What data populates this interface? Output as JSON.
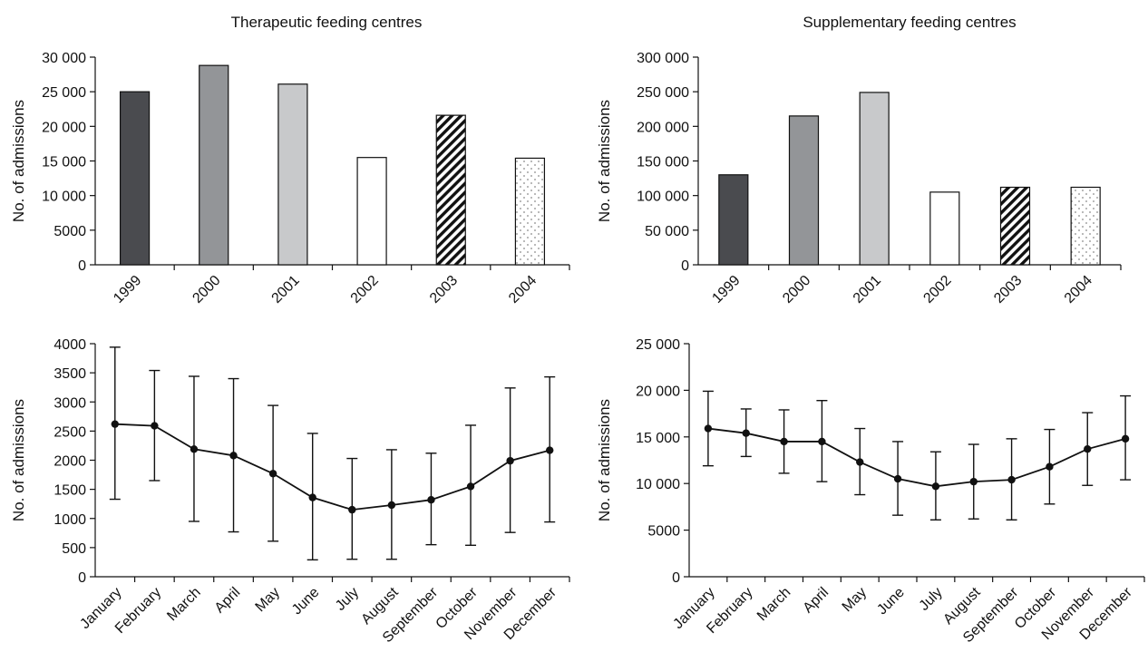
{
  "chart_data": [
    {
      "type": "bar",
      "title": "Therapeutic feeding centres",
      "ylabel": "No. of admissions",
      "categories": [
        "1999",
        "2000",
        "2001",
        "2002",
        "2003",
        "2004"
      ],
      "values": [
        25000,
        28800,
        26100,
        15500,
        21600,
        15400
      ],
      "ylim": [
        0,
        30000
      ],
      "yticks": [
        0,
        5000,
        10000,
        15000,
        20000,
        25000,
        30000
      ],
      "ytick_labels": [
        "0",
        "5000",
        "10 000",
        "15 000",
        "20 000",
        "25 000",
        "30 000"
      ],
      "bar_styles": [
        {
          "fill": "#4a4b4f",
          "pattern": "solid"
        },
        {
          "fill": "#939598",
          "pattern": "solid"
        },
        {
          "fill": "#c8c9cb",
          "pattern": "solid"
        },
        {
          "fill": "#ffffff",
          "pattern": "solid"
        },
        {
          "fill": "#ffffff",
          "pattern": "diagonal-stripes"
        },
        {
          "fill": "#ffffff",
          "pattern": "dots"
        }
      ]
    },
    {
      "type": "bar",
      "title": "Supplementary feeding centres",
      "ylabel": "No. of admissions",
      "categories": [
        "1999",
        "2000",
        "2001",
        "2002",
        "2003",
        "2004"
      ],
      "values": [
        130000,
        215000,
        249000,
        105000,
        112000,
        112000
      ],
      "ylim": [
        0,
        300000
      ],
      "yticks": [
        0,
        50000,
        100000,
        150000,
        200000,
        250000,
        300000
      ],
      "ytick_labels": [
        "0",
        "50 000",
        "100 000",
        "150 000",
        "200 000",
        "250 000",
        "300 000"
      ],
      "bar_styles": [
        {
          "fill": "#4a4b4f",
          "pattern": "solid"
        },
        {
          "fill": "#939598",
          "pattern": "solid"
        },
        {
          "fill": "#c8c9cb",
          "pattern": "solid"
        },
        {
          "fill": "#ffffff",
          "pattern": "solid"
        },
        {
          "fill": "#ffffff",
          "pattern": "diagonal-stripes"
        },
        {
          "fill": "#ffffff",
          "pattern": "dots"
        }
      ]
    },
    {
      "type": "line",
      "title": "",
      "ylabel": "No. of admissions",
      "categories": [
        "January",
        "February",
        "March",
        "April",
        "May",
        "June",
        "July",
        "August",
        "September",
        "October",
        "November",
        "December"
      ],
      "values": [
        2620,
        2590,
        2190,
        2080,
        1770,
        1360,
        1150,
        1230,
        1320,
        1550,
        1990,
        2170
      ],
      "error_low": [
        1330,
        1650,
        950,
        770,
        610,
        290,
        300,
        300,
        550,
        540,
        760,
        940
      ],
      "error_high": [
        3940,
        3540,
        3440,
        3400,
        2940,
        2460,
        2030,
        2180,
        2120,
        2600,
        3240,
        3430
      ],
      "ylim": [
        0,
        4000
      ],
      "yticks": [
        0,
        500,
        1000,
        1500,
        2000,
        2500,
        3000,
        3500,
        4000
      ],
      "ytick_labels": [
        "0",
        "500",
        "1000",
        "1500",
        "2000",
        "2500",
        "3000",
        "3500",
        "4000"
      ]
    },
    {
      "type": "line",
      "title": "",
      "ylabel": "No. of admissions",
      "categories": [
        "January",
        "February",
        "March",
        "April",
        "May",
        "June",
        "July",
        "August",
        "September",
        "October",
        "November",
        "December"
      ],
      "values": [
        15900,
        15400,
        14500,
        14500,
        12300,
        10500,
        9700,
        10200,
        10400,
        11800,
        13700,
        14800
      ],
      "error_low": [
        11900,
        12900,
        11100,
        10200,
        8800,
        6600,
        6100,
        6200,
        6100,
        7800,
        9800,
        10400
      ],
      "error_high": [
        19900,
        18000,
        17900,
        18900,
        15900,
        14500,
        13400,
        14200,
        14800,
        15800,
        17600,
        19400
      ],
      "ylim": [
        0,
        25000
      ],
      "yticks": [
        0,
        5000,
        10000,
        15000,
        20000,
        25000
      ],
      "ytick_labels": [
        "0",
        "5000",
        "10 000",
        "15 000",
        "20 000",
        "25 000"
      ]
    }
  ]
}
